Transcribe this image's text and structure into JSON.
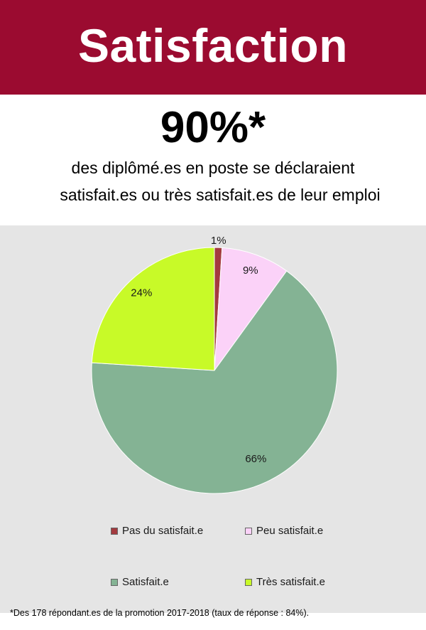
{
  "header": {
    "title": "Satisfaction",
    "banner_color": "#9b0b30"
  },
  "headline": {
    "value": "90%*",
    "line1": "des diplômé.es en poste se déclaraient",
    "line2": "satisfait.es ou très satisfait.es de leur emploi"
  },
  "chart_data": {
    "type": "pie",
    "slices": [
      {
        "label": "Pas du satisfait.e",
        "value": 1,
        "display": "1%",
        "color": "#a33a3f"
      },
      {
        "label": "Peu satisfait.e",
        "value": 9,
        "display": "9%",
        "color": "#fbd2f8"
      },
      {
        "label": "Satisfait.e",
        "value": 66,
        "display": "66%",
        "color": "#84b394"
      },
      {
        "label": "Très satisfait.e",
        "value": 24,
        "display": "24%",
        "color": "#c8fa28"
      }
    ],
    "start": "top, clockwise",
    "legend_position": "bottom"
  },
  "footnote": "*Des 178 répondant.es de la promotion 2017-2018 (taux de réponse : 84%)."
}
